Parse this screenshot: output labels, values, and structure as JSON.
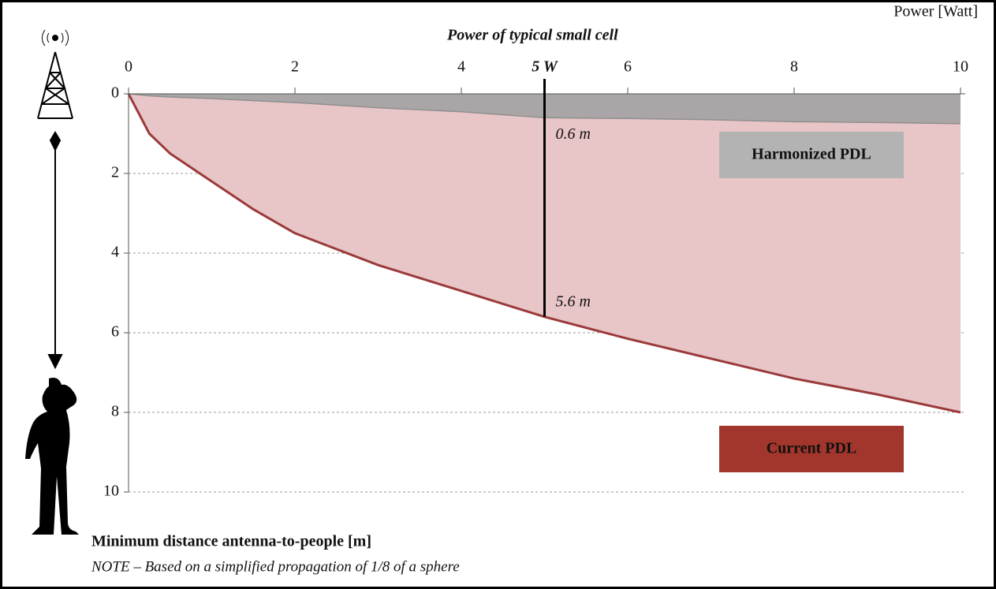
{
  "chart_data": {
    "type": "area",
    "title": "Power of typical small cell",
    "x_unit_label": "Power [Watt]",
    "y_axis_title": "Minimum distance antenna-to-people [m]",
    "note": "NOTE – Based on a simplified propagation of 1/8 of a sphere",
    "x": [
      0,
      0.25,
      0.5,
      1,
      1.5,
      2,
      3,
      4,
      5,
      6,
      7,
      8,
      9,
      10
    ],
    "series": [
      {
        "name": "Current PDL",
        "color": "#9b3a3a",
        "fill": "#e8c5c7",
        "legend_color": "#a3362c",
        "values": [
          0,
          1.0,
          1.5,
          2.2,
          2.9,
          3.5,
          4.3,
          4.95,
          5.6,
          6.15,
          6.65,
          7.15,
          7.55,
          8.0
        ]
      },
      {
        "name": "Harmonized PDL",
        "color": "#8f8f8f",
        "fill": "#aaa6a7",
        "legend_color": "#b3b3b3",
        "values": [
          0,
          0.05,
          0.08,
          0.12,
          0.17,
          0.22,
          0.35,
          0.45,
          0.6,
          0.62,
          0.65,
          0.7,
          0.72,
          0.75
        ]
      }
    ],
    "annotations": [
      "0.6 m",
      "5.6 m"
    ],
    "xlim": [
      0,
      10
    ],
    "xticks": [
      0,
      2,
      4,
      {
        "value": 5,
        "label": "5 W"
      },
      6,
      8,
      10
    ],
    "ylim": [
      0,
      10
    ],
    "yticks": [
      0,
      2,
      4,
      6,
      8,
      10
    ],
    "y_inverted": true,
    "grid": true
  }
}
